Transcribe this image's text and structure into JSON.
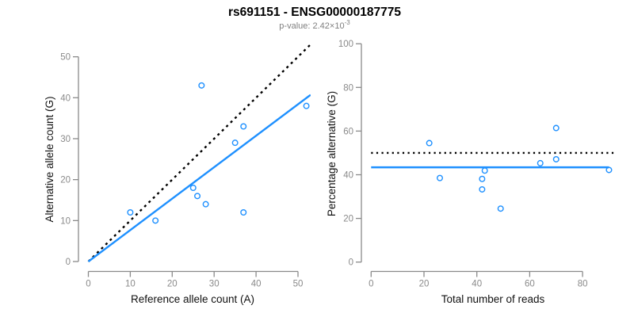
{
  "header": {
    "title": "rs691151 - ENSG00000187775",
    "subtitle_base": "p-value: 2.42×10",
    "subtitle_exponent": "-3"
  },
  "colors": {
    "accent_blue": "#1E90FF",
    "axis_gray": "#8A8A8A",
    "tick_label_gray": "#8A8A8A",
    "subtitle_gray": "#7F7F7F",
    "line_black": "#000000",
    "background": "#FFFFFF"
  },
  "chart_data": [
    {
      "type": "scatter",
      "xlabel": "Reference allele count (A)",
      "ylabel": "Alternative allele count (G)",
      "xlim": [
        0,
        52
      ],
      "ylim": [
        0,
        50
      ],
      "xticks": [
        0,
        10,
        20,
        30,
        40,
        50
      ],
      "yticks": [
        0,
        10,
        20,
        30,
        40,
        50
      ],
      "grid": false,
      "legend": "none",
      "points": [
        [
          10,
          12
        ],
        [
          16,
          10
        ],
        [
          25,
          18
        ],
        [
          26,
          16
        ],
        [
          27,
          43
        ],
        [
          28,
          14
        ],
        [
          35,
          29
        ],
        [
          37,
          33
        ],
        [
          37,
          12
        ],
        [
          52,
          38
        ]
      ],
      "lines": [
        {
          "name": "identity-line",
          "style": "dashed",
          "color": "#000000",
          "from": [
            0,
            0
          ],
          "to": [
            53,
            53
          ]
        },
        {
          "name": "fit-line",
          "style": "solid",
          "color": "#1E90FF",
          "from": [
            0,
            0
          ],
          "to": [
            53,
            40.7
          ],
          "slope": 0.768
        }
      ]
    },
    {
      "type": "scatter",
      "xlabel": "Total number of reads",
      "ylabel": "Percentage alternative (G)",
      "xlim": [
        0,
        90
      ],
      "ylim": [
        0,
        100
      ],
      "xticks": [
        0,
        20,
        40,
        60,
        80
      ],
      "yticks": [
        0,
        20,
        40,
        60,
        80,
        100
      ],
      "grid": false,
      "legend": "none",
      "points": [
        [
          22,
          54.5
        ],
        [
          26,
          38.5
        ],
        [
          42,
          38.1
        ],
        [
          42,
          33.3
        ],
        [
          43,
          41.9
        ],
        [
          49,
          24.5
        ],
        [
          64,
          45.3
        ],
        [
          70,
          61.4
        ],
        [
          70,
          47.1
        ],
        [
          90,
          42.2
        ]
      ],
      "lines": [
        {
          "name": "fifty-percent-line",
          "style": "dotted",
          "color": "#000000",
          "y": 50
        },
        {
          "name": "mean-percentage-line",
          "style": "solid",
          "color": "#1E90FF",
          "y": 43.4,
          "xend": 90
        }
      ]
    }
  ]
}
